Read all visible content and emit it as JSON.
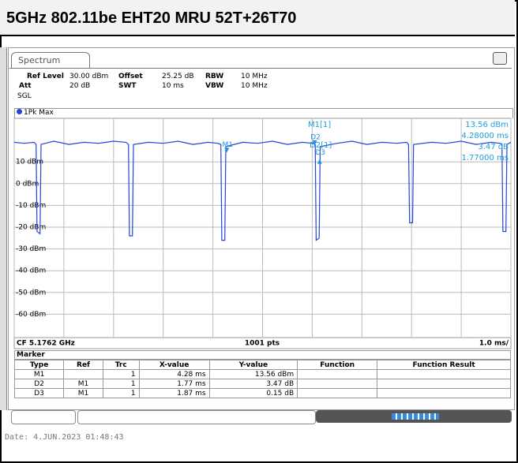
{
  "header": {
    "title": "5GHz 802.11be EHT20 MRU 52T+26T70"
  },
  "tab": "Spectrum",
  "settings": [
    [
      "Ref Level",
      "30.00 dBm",
      "Offset",
      "25.25 dB",
      "RBW",
      "10 MHz"
    ],
    [
      "Att",
      "20 dB",
      "SWT",
      "10 ms",
      "VBW",
      "10 MHz"
    ]
  ],
  "mode": "SGL",
  "chart_data": {
    "type": "line",
    "x": [
      0,
      0.2,
      0.4,
      0.44,
      0.46,
      0.52,
      0.54,
      0.8,
      1.1,
      1.4,
      1.7,
      2.0,
      2.25,
      2.3,
      2.32,
      2.38,
      2.4,
      2.7,
      3.0,
      3.3,
      3.6,
      3.9,
      4.1,
      4.16,
      4.18,
      4.24,
      4.26,
      4.6,
      4.9,
      5.2,
      5.5,
      5.8,
      6.0,
      6.06,
      6.08,
      6.14,
      6.16,
      6.5,
      6.8,
      7.1,
      7.4,
      7.7,
      7.9,
      7.94,
      7.96,
      8.02,
      8.04,
      8.4,
      8.7,
      9.0,
      9.3,
      9.6,
      9.78,
      9.82,
      9.84,
      9.9,
      9.92,
      10
    ],
    "series": [
      {
        "name": "1Pk Max",
        "color": "#2444d8",
        "values": [
          19,
          18.5,
          19,
          18,
          -22,
          -23,
          18,
          19.5,
          18,
          19,
          18.5,
          19.5,
          19,
          18,
          -24,
          -24,
          18,
          19,
          18.5,
          19.5,
          18,
          19,
          18.5,
          18,
          -26,
          -26,
          17,
          19,
          18.5,
          19.5,
          18,
          19,
          18.5,
          18,
          -26,
          -25,
          17,
          18.5,
          19.5,
          18,
          19,
          18.5,
          19,
          18,
          -18,
          -18,
          18,
          19,
          18.5,
          19.5,
          18,
          19,
          18.5,
          18,
          -22,
          -22,
          18,
          19
        ]
      }
    ],
    "xlim": [
      0,
      10
    ],
    "xticks": [
      0,
      1,
      2,
      3,
      4,
      5,
      6,
      7,
      8,
      9,
      10
    ],
    "ylim": [
      -70,
      30
    ],
    "yticks": [
      {
        "value": 10,
        "label": "10 dBm"
      },
      {
        "value": 0,
        "label": "0 dBm"
      },
      {
        "value": -10,
        "label": "-10 dBm"
      },
      {
        "value": -20,
        "label": "-20 dBm"
      },
      {
        "value": -30,
        "label": "-30 dBm"
      },
      {
        "value": -40,
        "label": "-40 dBm"
      },
      {
        "value": -50,
        "label": "-50 dBm"
      },
      {
        "value": -60,
        "label": "-60 dBm"
      }
    ],
    "grid": true,
    "markers": [
      {
        "name": "M1",
        "x": 4.28,
        "y": 13.56,
        "dir": "down"
      },
      {
        "name": "D2",
        "x": 6.05,
        "y": 17,
        "dir": "down"
      },
      {
        "name": "D3",
        "x": 6.15,
        "y": 12,
        "dir": "up"
      }
    ],
    "readout": [
      "M1[1]",
      "13.56 dBm",
      "4.28000 ms",
      "D2[1]",
      "3.47 dB",
      "1.77000 ms"
    ],
    "footer": [
      "CF 5.1762 GHz",
      "1001 pts",
      "1.0 ms/"
    ]
  },
  "marker_table": {
    "title": "Marker",
    "columns": [
      "Type",
      "Ref",
      "Trc",
      "X-value",
      "Y-value",
      "Function",
      "Function Result"
    ],
    "rows": [
      {
        "type": "M1",
        "trc": "1",
        "x": "4.28 ms",
        "y": "13.56 dBm"
      },
      {
        "type": "D2",
        "ref": "M1",
        "trc": "1",
        "x": "1.77 ms",
        "y": "3.47 dB"
      },
      {
        "type": "D3",
        "ref": "M1",
        "trc": "1",
        "x": "1.87 ms",
        "y": "0.15 dB"
      }
    ]
  },
  "date": "Date: 4.JUN.2023  01:48:43"
}
